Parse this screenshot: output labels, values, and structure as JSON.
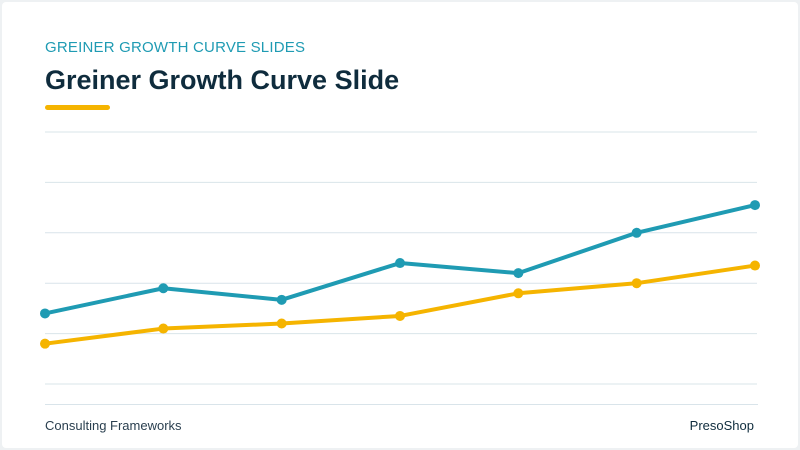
{
  "header": {
    "kicker": "GREINER GROWTH CURVE SLIDES",
    "title": "Greiner Growth Curve Slide"
  },
  "footer": {
    "left": "Consulting Frameworks",
    "right": "PresoShop"
  },
  "colors": {
    "teal": "#1f9bb3",
    "gold": "#f5b400",
    "grid": "#d9e4ea",
    "title": "#0f2c3d"
  },
  "chart_data": {
    "type": "line",
    "title": "",
    "xlabel": "",
    "ylabel": "",
    "x": [
      1,
      2,
      3,
      4,
      5,
      6,
      7
    ],
    "ylim": [
      0,
      5
    ],
    "grid": true,
    "legend": "none",
    "series": [
      {
        "color": "#1f9bb3",
        "values": [
          1.4,
          1.9,
          1.67,
          2.4,
          2.2,
          3.0,
          3.55
        ]
      },
      {
        "color": "#f5b400",
        "values": [
          0.8,
          1.1,
          1.2,
          1.35,
          1.8,
          2.0,
          2.35
        ]
      }
    ]
  }
}
